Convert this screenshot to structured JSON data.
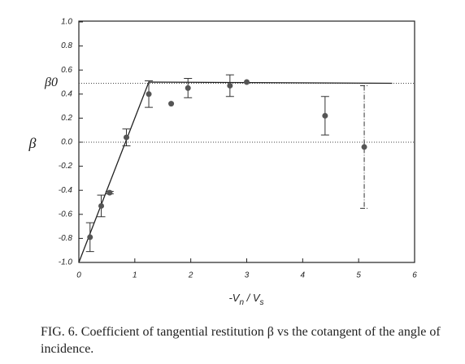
{
  "chart_data": {
    "type": "scatter",
    "y_label": "β",
    "x_label_parts": [
      "-V",
      "n",
      " / V",
      "s"
    ],
    "annotation": "β0",
    "xlim": [
      0,
      6
    ],
    "ylim": [
      -1,
      1
    ],
    "xticks": [
      0,
      1,
      2,
      3,
      4,
      5,
      6
    ],
    "yticks": [
      {
        "value": -1,
        "label": "-1.0"
      },
      -0.8,
      -0.6,
      -0.4,
      -0.2,
      {
        "value": 0,
        "label": "0.0"
      },
      0.2,
      0.4,
      0.6,
      0.8,
      {
        "value": 1,
        "label": "1.0"
      }
    ],
    "hlines": [
      0.49,
      0
    ],
    "points": {
      "color": "#555",
      "x": [
        0.2,
        0.4,
        0.55,
        0.85,
        1.25,
        1.65,
        1.95,
        2.7,
        3.0,
        4.4,
        5.1
      ],
      "y": [
        -0.79,
        -0.53,
        -0.42,
        0.04,
        0.4,
        0.32,
        0.45,
        0.47,
        0.5,
        0.22,
        -0.04
      ],
      "err": [
        0.12,
        0.09,
        0.01,
        0.07,
        0.11,
        null,
        0.08,
        0.09,
        null,
        0.16,
        0.51
      ]
    },
    "model": {
      "x": [
        0,
        1.25,
        5.6
      ],
      "y": [
        -1,
        0.5,
        0.49
      ]
    },
    "caption": "FIG. 6. Coefficient of tangential restitution β vs the cotangent of the angle of incidence."
  }
}
